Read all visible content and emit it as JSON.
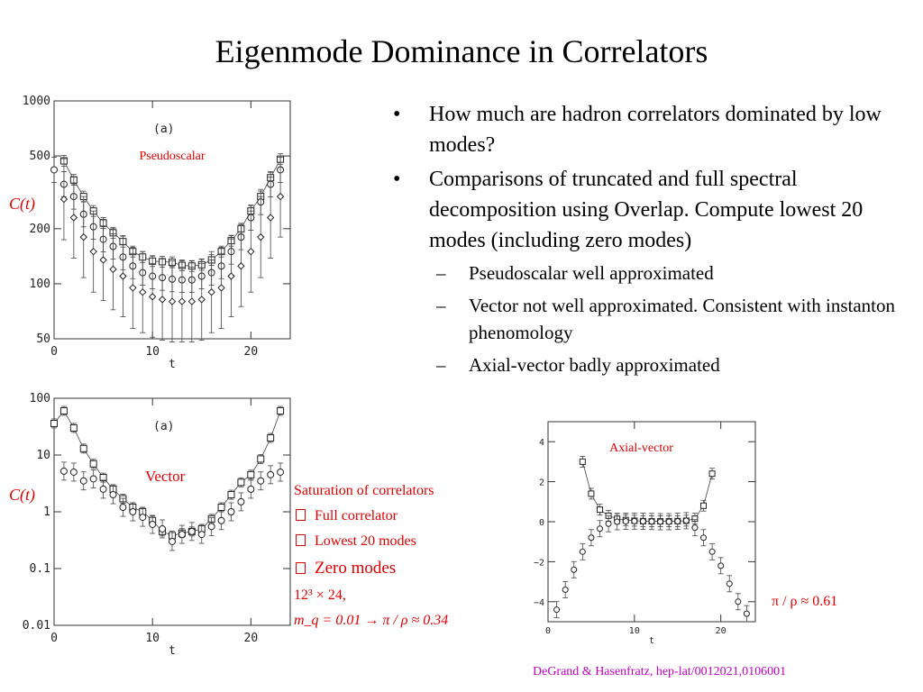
{
  "title": "Eigenmode Dominance in Correlators",
  "bullets": [
    "How much are hadron correlators dominated by low modes?",
    "Comparisons of truncated and full spectral decomposition using Overlap. Compute lowest 20 modes (including zero modes)"
  ],
  "sub_bullets": [
    "Pseudoscalar well approximated",
    "Vector not well approximated. Consistent with instanton phenomology",
    "Axial-vector badly approximated"
  ],
  "saturation": {
    "heading": "Saturation of correlators",
    "full": "Full correlator",
    "lowest": "Lowest 20 modes",
    "zero": "Zero modes",
    "lattice": "12³ × 24,",
    "mass": "m_q = 0.01 → π / ρ ≈ 0.34"
  },
  "vector_ratio": "π / ρ ≈ 0.61",
  "citation": "DeGrand & Hasenfratz, hep-lat/0012021,0106001",
  "colors": {
    "annotation": "#e00000",
    "citation": "#c000c0"
  },
  "chart_data": [
    {
      "type": "scatter",
      "panel_tag": "(a)",
      "label": "Pseudoscalar",
      "ylabel": "C(t)",
      "xlabel": "t",
      "yscale": "log",
      "xlim": [
        0,
        24
      ],
      "ylim": [
        50,
        1000
      ],
      "xticks": [
        "0",
        "10",
        "20"
      ],
      "yticks": [
        "1000",
        "500",
        "200",
        "100",
        "50"
      ],
      "series": [
        {
          "marker": "square",
          "connected": true,
          "x": [
            1,
            2,
            3,
            4,
            5,
            6,
            7,
            8,
            9,
            10,
            11,
            12,
            13,
            14,
            15,
            16,
            17,
            18,
            19,
            20,
            21,
            22,
            23
          ],
          "y": [
            470,
            370,
            300,
            250,
            215,
            190,
            170,
            150,
            140,
            133,
            132,
            131,
            126,
            125,
            127,
            135,
            150,
            172,
            200,
            250,
            300,
            380,
            480
          ]
        },
        {
          "marker": "circle",
          "connected": false,
          "x": [
            0,
            1,
            2,
            3,
            4,
            5,
            6,
            7,
            8,
            9,
            10,
            11,
            12,
            13,
            14,
            15,
            16,
            17,
            18,
            19,
            20,
            21,
            22,
            23
          ],
          "y": [
            420,
            350,
            300,
            240,
            205,
            175,
            160,
            140,
            125,
            115,
            110,
            108,
            106,
            105,
            105,
            110,
            115,
            125,
            150,
            180,
            230,
            280,
            350,
            420
          ]
        },
        {
          "marker": "diamond",
          "connected": false,
          "x": [
            1,
            2,
            3,
            4,
            5,
            6,
            7,
            8,
            9,
            10,
            11,
            12,
            13,
            14,
            15,
            16,
            17,
            18,
            19,
            20,
            21,
            22,
            23
          ],
          "y": [
            290,
            230,
            180,
            150,
            135,
            120,
            110,
            95,
            90,
            85,
            82,
            80,
            80,
            80,
            82,
            90,
            95,
            110,
            125,
            150,
            180,
            230,
            300
          ]
        }
      ]
    },
    {
      "type": "scatter",
      "panel_tag": "(a)",
      "label": "Vector",
      "ylabel": "C(t)",
      "xlabel": "t",
      "yscale": "log",
      "xlim": [
        0,
        24
      ],
      "ylim": [
        0.01,
        100
      ],
      "xticks": [
        "0",
        "10",
        "20"
      ],
      "yticks": [
        "100",
        "10",
        "1",
        "0.1",
        "0.01"
      ],
      "series": [
        {
          "marker": "square",
          "connected": true,
          "x": [
            0,
            1,
            2,
            3,
            4,
            5,
            6,
            7,
            8,
            9,
            10,
            11,
            12,
            13,
            14,
            15,
            16,
            17,
            18,
            19,
            20,
            21,
            22,
            23
          ],
          "y": [
            36,
            60,
            30,
            13,
            7,
            4,
            2.5,
            1.7,
            1.2,
            1.0,
            0.7,
            0.45,
            0.38,
            0.42,
            0.45,
            0.5,
            0.75,
            1.2,
            2.0,
            3.3,
            4.5,
            8.5,
            20,
            60
          ]
        },
        {
          "marker": "circle",
          "connected": false,
          "x": [
            1,
            2,
            3,
            4,
            5,
            6,
            7,
            8,
            9,
            10,
            11,
            12,
            13,
            14,
            15,
            16,
            17,
            18,
            19,
            20,
            21,
            22,
            23
          ],
          "y": [
            5.2,
            5.0,
            3.5,
            3.8,
            2.5,
            2.0,
            1.2,
            1.0,
            0.8,
            0.6,
            0.5,
            0.3,
            0.4,
            0.45,
            0.4,
            0.55,
            0.7,
            1.0,
            1.5,
            2.5,
            3.5,
            4.5,
            5.0
          ]
        }
      ]
    },
    {
      "type": "scatter",
      "label": "Axial-vector",
      "xlabel": "t",
      "xlim": [
        0,
        24
      ],
      "ylim": [
        -5,
        5
      ],
      "xticks": [
        "0",
        "10",
        "20"
      ],
      "yticks": [
        "4",
        "2",
        "0",
        "−2",
        "−4"
      ],
      "series": [
        {
          "marker": "square",
          "connected": true,
          "x": [
            4,
            5,
            6,
            7,
            8,
            9,
            10,
            11,
            12,
            13,
            14,
            15,
            16,
            17,
            18,
            19
          ],
          "y": [
            3.0,
            1.4,
            0.6,
            0.3,
            0.15,
            0.08,
            0.05,
            0.03,
            0.02,
            0.02,
            0.02,
            0.03,
            0.05,
            0.15,
            0.8,
            2.4
          ]
        },
        {
          "marker": "circle",
          "connected": false,
          "x": [
            1,
            2,
            3,
            4,
            5,
            6,
            7,
            8,
            9,
            10,
            11,
            12,
            13,
            14,
            15,
            16,
            17,
            18,
            19,
            20,
            21,
            22,
            23
          ],
          "y": [
            -4.4,
            -3.4,
            -2.4,
            -1.5,
            -0.8,
            -0.35,
            -0.1,
            0.0,
            0.02,
            0.03,
            0.02,
            0.01,
            0.0,
            0.0,
            0.02,
            0.05,
            -0.3,
            -0.8,
            -1.5,
            -2.2,
            -3.1,
            -4.0,
            -4.6
          ]
        }
      ]
    }
  ]
}
